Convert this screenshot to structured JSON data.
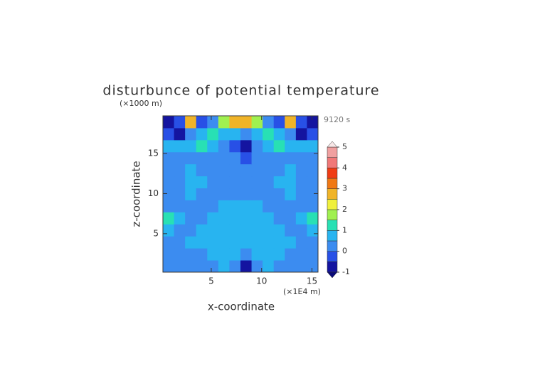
{
  "chart_data": {
    "type": "heatmap",
    "title": "disturbunce of potential temperature",
    "xlabel": "x-coordinate",
    "ylabel": "z-coordinate",
    "xunit": "(×1E4 m)",
    "yunit": "(×1000 m)",
    "annotation": "9120 s",
    "xlim": [
      0.2,
      15.6
    ],
    "ylim": [
      0.2,
      19.7
    ],
    "xticks": [
      5,
      10,
      15
    ],
    "yticks": [
      5,
      10,
      15
    ],
    "x_edges": [
      0.2,
      1.3,
      2.4,
      3.5,
      4.6,
      5.7,
      6.8,
      7.9,
      9.0,
      10.1,
      11.2,
      12.3,
      13.4,
      14.5,
      15.6
    ],
    "y_edges": [
      0.2,
      1.7,
      3.2,
      4.7,
      6.2,
      7.7,
      9.2,
      10.7,
      12.2,
      13.7,
      15.2,
      16.7,
      18.2,
      19.7
    ],
    "z": [
      [
        0.3,
        0.3,
        0.3,
        0.3,
        0.3,
        0.7,
        0.3,
        -0.7,
        0.3,
        0.7,
        0.3,
        0.3,
        0.3,
        0.3
      ],
      [
        0.3,
        0.3,
        0.3,
        0.3,
        0.7,
        0.7,
        0.7,
        0.3,
        0.7,
        0.7,
        0.7,
        0.3,
        0.3,
        0.3
      ],
      [
        0.3,
        0.3,
        0.7,
        0.7,
        0.7,
        0.7,
        0.7,
        0.7,
        0.7,
        0.7,
        0.7,
        0.7,
        0.3,
        0.3
      ],
      [
        0.7,
        0.3,
        0.3,
        0.7,
        0.7,
        0.7,
        0.7,
        0.7,
        0.7,
        0.7,
        0.7,
        0.3,
        0.3,
        0.7
      ],
      [
        1.2,
        0.7,
        0.3,
        0.3,
        0.7,
        0.7,
        0.7,
        0.7,
        0.7,
        0.7,
        0.3,
        0.3,
        0.7,
        1.2
      ],
      [
        0.3,
        0.3,
        0.3,
        0.3,
        0.3,
        0.7,
        0.7,
        0.7,
        0.7,
        0.3,
        0.3,
        0.3,
        0.3,
        0.3
      ],
      [
        0.3,
        0.3,
        0.7,
        0.3,
        0.3,
        0.3,
        0.3,
        0.3,
        0.3,
        0.3,
        0.3,
        0.7,
        0.3,
        0.3
      ],
      [
        0.3,
        0.3,
        0.7,
        0.7,
        0.3,
        0.3,
        0.3,
        0.3,
        0.3,
        0.3,
        0.7,
        0.7,
        0.3,
        0.3
      ],
      [
        0.3,
        0.3,
        0.7,
        0.3,
        0.3,
        0.3,
        0.3,
        0.3,
        0.3,
        0.3,
        0.3,
        0.7,
        0.3,
        0.3
      ],
      [
        0.3,
        0.3,
        0.3,
        0.3,
        0.3,
        0.3,
        0.3,
        -0.2,
        0.3,
        0.3,
        0.3,
        0.3,
        0.3,
        0.3
      ],
      [
        0.7,
        0.7,
        0.7,
        1.2,
        0.7,
        0.3,
        -0.2,
        -0.7,
        0.3,
        0.7,
        1.2,
        0.7,
        0.7,
        0.7
      ],
      [
        -0.2,
        -0.7,
        0.3,
        0.7,
        1.2,
        0.7,
        0.7,
        0.3,
        0.7,
        1.2,
        0.7,
        0.3,
        -0.7,
        -0.2
      ],
      [
        -0.7,
        -0.2,
        2.7,
        -0.2,
        0.3,
        1.7,
        2.7,
        2.7,
        1.7,
        0.3,
        -0.2,
        2.7,
        -0.2,
        -0.7
      ]
    ],
    "colorbar": {
      "levels": [
        -1,
        -0.5,
        0,
        0.5,
        1,
        1.5,
        2,
        2.5,
        3,
        3.5,
        4,
        4.5,
        5
      ],
      "colors": [
        "#1414a0",
        "#2850e6",
        "#3c8cf0",
        "#28b4f0",
        "#28e0b4",
        "#a0f050",
        "#f0f03c",
        "#f0b428",
        "#f07814",
        "#f03c14",
        "#f07878",
        "#f0a0a0"
      ],
      "ticks": [
        -1,
        0,
        1,
        2,
        3,
        4,
        5
      ],
      "under_color": "#0a0a78",
      "over_color": "#f8e8e8"
    }
  }
}
